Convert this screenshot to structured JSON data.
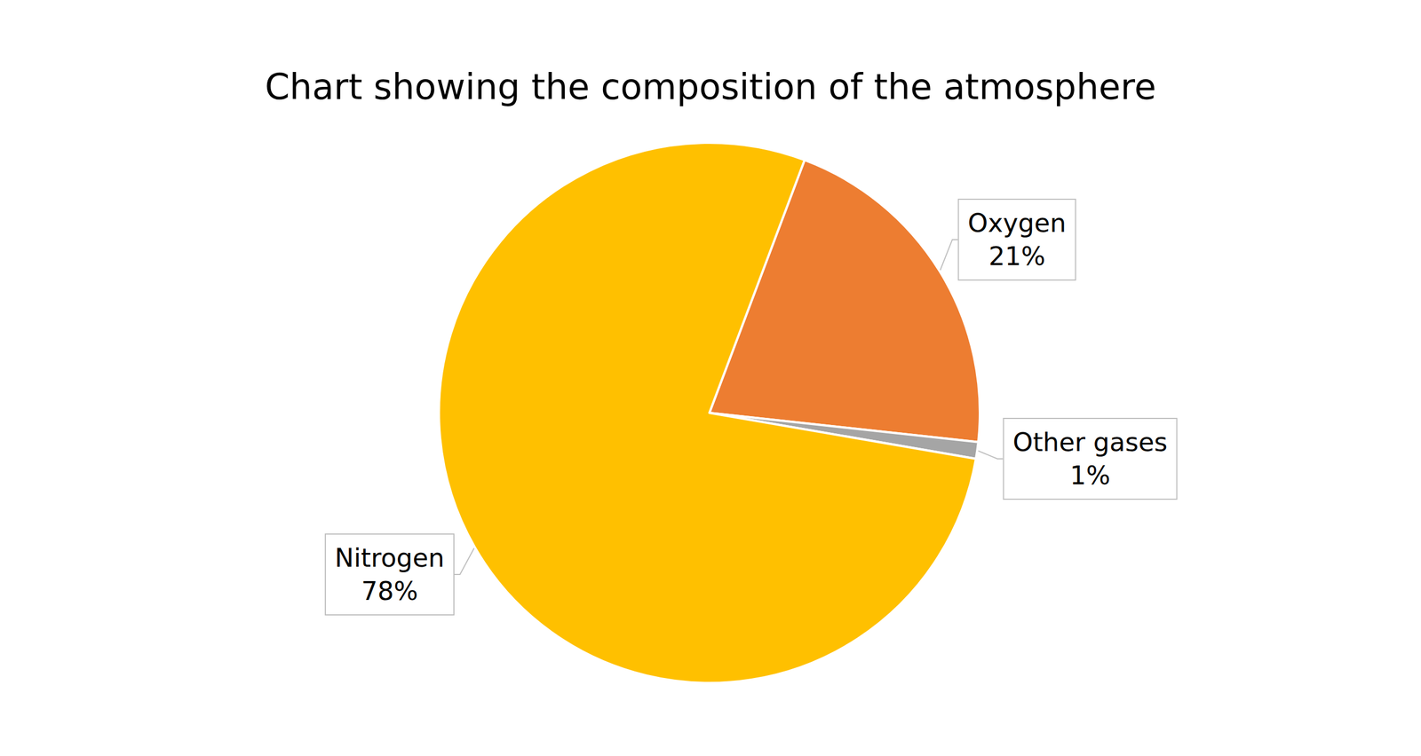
{
  "chart_data": {
    "type": "pie",
    "title": "Chart showing the composition of the atmosphere",
    "categories": [
      "Oxygen",
      "Other gases",
      "Nitrogen"
    ],
    "values": [
      21,
      1,
      78
    ],
    "value_labels": [
      "21%",
      "1%",
      "78%"
    ],
    "colors": [
      "#ed7d31",
      "#a5a5a5",
      "#ffc000"
    ],
    "data_labels": true
  }
}
